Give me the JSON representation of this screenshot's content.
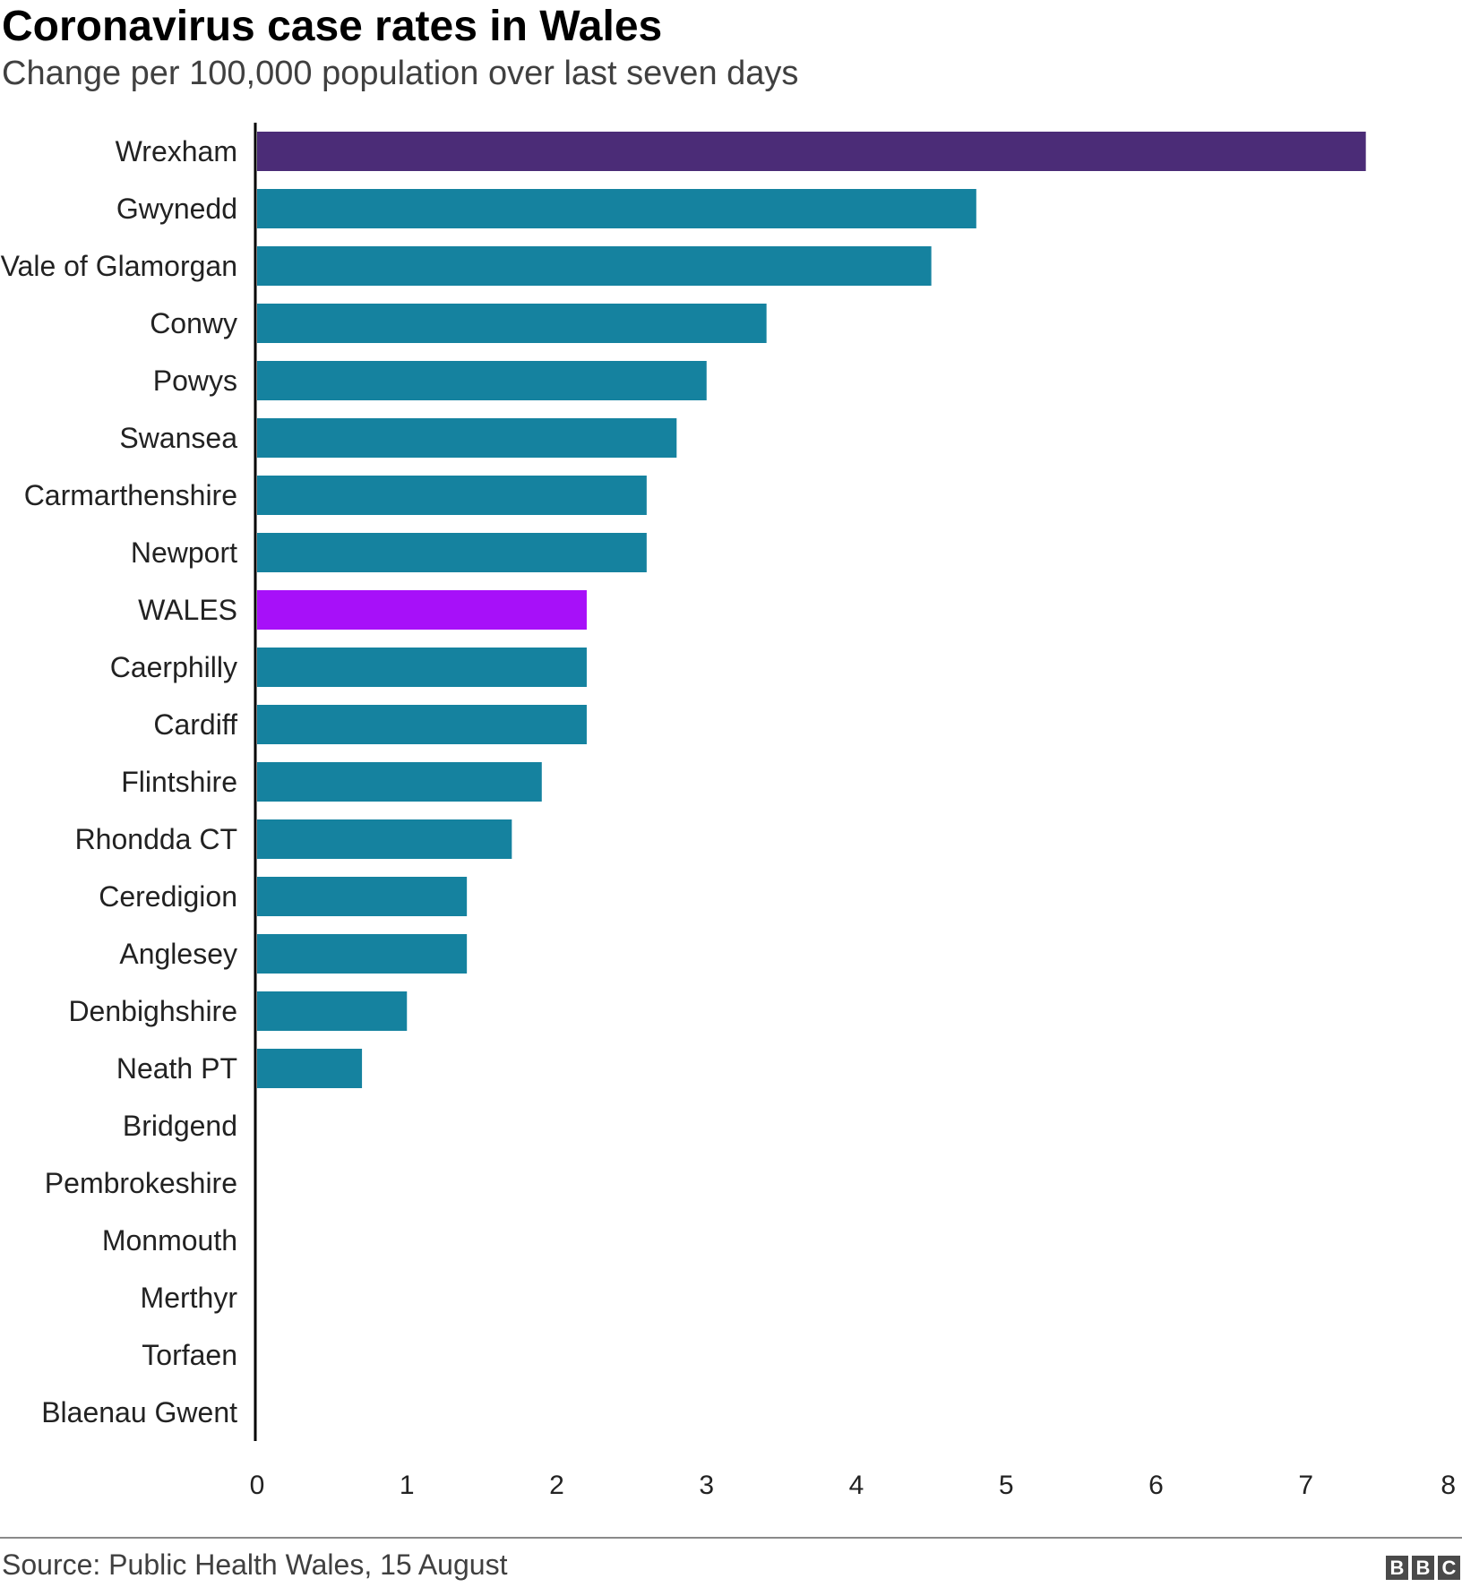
{
  "chart_data": {
    "type": "bar",
    "orientation": "horizontal",
    "title": "Coronavirus case rates in Wales",
    "subtitle": "Change per 100,000 population over last seven days",
    "categories": [
      "Wrexham",
      "Gwynedd",
      "Vale of Glamorgan",
      "Conwy",
      "Powys",
      "Swansea",
      "Carmarthenshire",
      "Newport",
      "WALES",
      "Caerphilly",
      "Cardiff",
      "Flintshire",
      "Rhondda CT",
      "Ceredigion",
      "Anglesey",
      "Denbighshire",
      "Neath PT",
      "Bridgend",
      "Pembrokeshire",
      "Monmouth",
      "Merthyr",
      "Torfaen",
      "Blaenau Gwent"
    ],
    "values": [
      7.4,
      4.8,
      4.5,
      3.4,
      3.0,
      2.8,
      2.6,
      2.6,
      2.2,
      2.2,
      2.2,
      1.9,
      1.7,
      1.4,
      1.4,
      1.0,
      0.7,
      0,
      0,
      0,
      0,
      0,
      0
    ],
    "colors": [
      "#4b2c77",
      "#15829f",
      "#15829f",
      "#15829f",
      "#15829f",
      "#15829f",
      "#15829f",
      "#15829f",
      "#a710f9",
      "#15829f",
      "#15829f",
      "#15829f",
      "#15829f",
      "#15829f",
      "#15829f",
      "#15829f",
      "#15829f",
      "#15829f",
      "#15829f",
      "#15829f",
      "#15829f",
      "#15829f",
      "#15829f"
    ],
    "xlim": [
      0,
      8
    ],
    "xticks": [
      0,
      1,
      2,
      3,
      4,
      5,
      6,
      7,
      8
    ],
    "grid": false,
    "legend": "none"
  },
  "footer": {
    "source": "Source: Public Health Wales, 15 August",
    "logo_letters": [
      "B",
      "B",
      "C"
    ]
  }
}
